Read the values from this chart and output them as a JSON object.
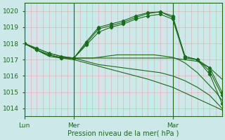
{
  "background_color": "#cce8e8",
  "grid_color": "#ddaaaa",
  "line_color": "#1a6b1a",
  "xlabel": "Pression niveau de la mer( hPa )",
  "ylim": [
    1013.5,
    1020.5
  ],
  "yticks": [
    1014,
    1015,
    1016,
    1017,
    1018,
    1019,
    1020
  ],
  "day_labels": [
    "Lun",
    "Mer",
    "Mar"
  ],
  "day_positions": [
    0,
    48,
    144
  ],
  "total_hours": 192,
  "series": [
    {
      "x": [
        0,
        6,
        12,
        18,
        24,
        30,
        36,
        42,
        48,
        54,
        60,
        66,
        72,
        78,
        84,
        90,
        96,
        102,
        108,
        114,
        120,
        126,
        132,
        138,
        144,
        150,
        156,
        162,
        168,
        174,
        180,
        186,
        192
      ],
      "y": [
        1018.0,
        1017.8,
        1017.6,
        1017.4,
        1017.3,
        1017.2,
        1017.15,
        1017.1,
        1017.1,
        1017.1,
        1017.1,
        1017.1,
        1017.15,
        1017.2,
        1017.25,
        1017.3,
        1017.3,
        1017.3,
        1017.3,
        1017.3,
        1017.3,
        1017.3,
        1017.25,
        1017.2,
        1017.15,
        1017.0,
        1016.8,
        1016.5,
        1016.2,
        1015.8,
        1015.4,
        1015.0,
        1014.5
      ],
      "has_markers": false
    },
    {
      "x": [
        0,
        12,
        24,
        36,
        48,
        60,
        72,
        84,
        96,
        108,
        120,
        132,
        144,
        156,
        168,
        180,
        192
      ],
      "y": [
        1018.0,
        1017.7,
        1017.4,
        1017.2,
        1017.1,
        1017.9,
        1018.7,
        1019.0,
        1019.2,
        1019.5,
        1019.7,
        1019.8,
        1019.5,
        1017.1,
        1017.0,
        1016.5,
        1015.0
      ],
      "has_markers": true
    },
    {
      "x": [
        0,
        12,
        24,
        36,
        48,
        60,
        72,
        84,
        96,
        108,
        120,
        132,
        144,
        156,
        168,
        180,
        192
      ],
      "y": [
        1018.0,
        1017.6,
        1017.3,
        1017.1,
        1017.1,
        1018.0,
        1018.9,
        1019.1,
        1019.3,
        1019.6,
        1019.85,
        1019.95,
        1019.6,
        1017.2,
        1017.0,
        1016.3,
        1014.8
      ],
      "has_markers": true
    },
    {
      "x": [
        0,
        12,
        24,
        36,
        48,
        60,
        72,
        84,
        96,
        108,
        120,
        132,
        144,
        156,
        168,
        180,
        192
      ],
      "y": [
        1018.0,
        1017.6,
        1017.3,
        1017.1,
        1017.1,
        1018.1,
        1019.0,
        1019.2,
        1019.4,
        1019.7,
        1019.9,
        1019.95,
        1019.7,
        1017.2,
        1017.0,
        1016.1,
        1014.3
      ],
      "has_markers": true
    },
    {
      "x": [
        48,
        60,
        72,
        84,
        96,
        108,
        120,
        132,
        144,
        156,
        168,
        180,
        192
      ],
      "y": [
        1017.1,
        1017.1,
        1017.1,
        1017.1,
        1017.1,
        1017.1,
        1017.1,
        1017.1,
        1017.1,
        1017.0,
        1016.9,
        1016.5,
        1015.8
      ],
      "has_markers": false
    },
    {
      "x": [
        0,
        12,
        24,
        36,
        48,
        60,
        72,
        84,
        96,
        108,
        120,
        132,
        144,
        156,
        168,
        180,
        192
      ],
      "y": [
        1018.0,
        1017.7,
        1017.4,
        1017.2,
        1017.1,
        1016.9,
        1016.7,
        1016.6,
        1016.5,
        1016.4,
        1016.3,
        1016.2,
        1016.0,
        1015.7,
        1015.3,
        1014.8,
        1014.0
      ],
      "has_markers": false
    },
    {
      "x": [
        0,
        24,
        48,
        72,
        96,
        120,
        144,
        168,
        192
      ],
      "y": [
        1018.0,
        1017.2,
        1017.0,
        1016.6,
        1016.2,
        1015.8,
        1015.3,
        1014.6,
        1013.9
      ],
      "has_markers": false
    }
  ]
}
